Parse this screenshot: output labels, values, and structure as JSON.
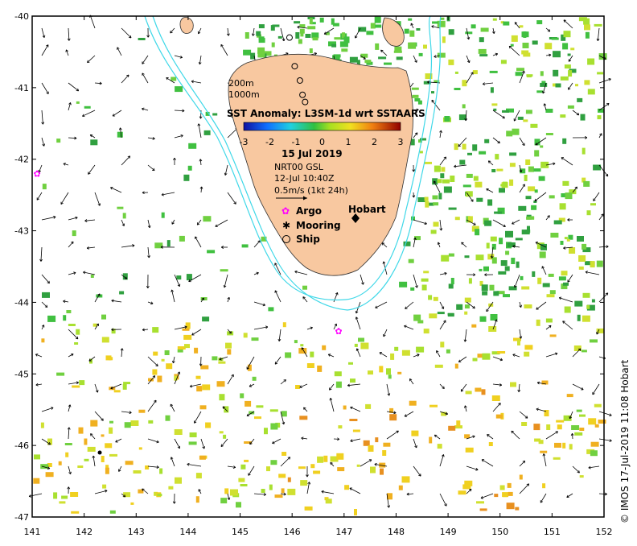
{
  "title": "SST Anomaly: L3SM-1d wrt SSTAARS",
  "date": "15 Jul 2019",
  "product": "NRT00 GSL",
  "product_time": "12-Jul 10:40Z",
  "vector_scale_label": "0.5m/s (1kt 24h)",
  "depth_contours": [
    "200m",
    "1000m"
  ],
  "colorbar": {
    "ticks": [
      "-3",
      "-2",
      "-1",
      "0",
      "1",
      "2",
      "3"
    ],
    "values": [
      -3,
      -2,
      -1,
      0,
      1,
      2,
      3
    ]
  },
  "legend": {
    "argo": "Argo",
    "mooring": "Mooring",
    "ship": "Ship"
  },
  "city": "Hobart",
  "credit": "© IMOS 17-Jul-2019 11:08 Hobart",
  "axes": {
    "x_ticks": [
      "141",
      "142",
      "143",
      "144",
      "145",
      "146",
      "147",
      "148",
      "149",
      "150",
      "151",
      "152"
    ],
    "y_ticks": [
      "-40",
      "-41",
      "-42",
      "-43",
      "-44",
      "-45",
      "-46",
      "-47"
    ],
    "lon_range": [
      141,
      152
    ],
    "lat_range": [
      -47,
      -40
    ]
  },
  "colors": {
    "land": "#f8c8a0",
    "contour": "#40d8e8",
    "argo": "#ff00ff"
  },
  "argo_floats": [
    [
      141.1,
      -42.2
    ],
    [
      146.9,
      -44.4
    ]
  ],
  "moorings": [
    [
      142.3,
      -46.1
    ]
  ],
  "ships": [
    [
      145.95,
      -40.3
    ],
    [
      146.05,
      -40.7
    ],
    [
      146.15,
      -40.9
    ],
    [
      146.2,
      -41.1
    ],
    [
      146.25,
      -41.2
    ]
  ]
}
